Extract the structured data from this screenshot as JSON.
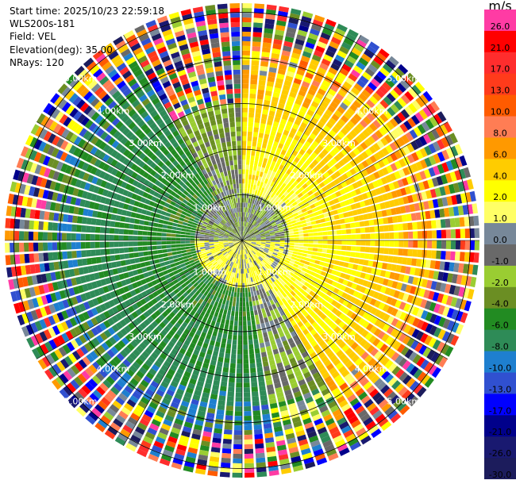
{
  "header": {
    "start_time": "Start time: 2025/10/23 22:59:18",
    "instrument": "WLS200s-181",
    "field": "Field: VEL",
    "elevation": "Elevation(deg): 35.00",
    "nrays": "NRays: 120"
  },
  "colorbar": {
    "unit": "m/s",
    "levels": [
      {
        "label": "26.0",
        "color": "#ff3ba4"
      },
      {
        "label": "21.0",
        "color": "#ff0000"
      },
      {
        "label": "17.0",
        "color": "#ff2d2d"
      },
      {
        "label": "13.0",
        "color": "#ff3b1b"
      },
      {
        "label": "10.0",
        "color": "#ff5b00"
      },
      {
        "label": "8.0",
        "color": "#ff7d54"
      },
      {
        "label": "6.0",
        "color": "#ff9900"
      },
      {
        "label": "4.0",
        "color": "#ffcc00"
      },
      {
        "label": "2.0",
        "color": "#ffff00"
      },
      {
        "label": "1.0",
        "color": "#ffff66"
      },
      {
        "label": "0.0",
        "color": "#778899"
      },
      {
        "label": "-1.0",
        "color": "#696969"
      },
      {
        "label": "-2.0",
        "color": "#9acd32"
      },
      {
        "label": "-4.0",
        "color": "#6b8e23"
      },
      {
        "label": "-6.0",
        "color": "#228b22"
      },
      {
        "label": "-8.0",
        "color": "#2e8b57"
      },
      {
        "label": "-10.0",
        "color": "#1e7fcf"
      },
      {
        "label": "-13.0",
        "color": "#3050d0"
      },
      {
        "label": "-17.0",
        "color": "#0000ff"
      },
      {
        "label": "-21.0",
        "color": "#00008b"
      },
      {
        "label": "-26.0",
        "color": "#191970"
      },
      {
        "label": "-30.0",
        "color": "#1c1c5c"
      }
    ]
  },
  "range_rings": [
    {
      "label": "1.00km",
      "range_km": 1
    },
    {
      "label": "2.00km",
      "range_km": 2
    },
    {
      "label": "3.00km",
      "range_km": 3
    },
    {
      "label": "4.00km",
      "range_km": 4
    },
    {
      "label": "5.00km",
      "range_km": 5
    }
  ],
  "chart_data": {
    "type": "heatmap",
    "field": "VEL",
    "units": "m/s",
    "n_rays": 120,
    "elevation_deg": 35.0,
    "max_range_km": 5.2,
    "color_scale_min": -30.0,
    "color_scale_max": 26.0,
    "approx_sectors": [
      {
        "azimuth_from_deg": 0,
        "azimuth_to_deg": 150,
        "range_from_km": 1.0,
        "range_to_km": 4.3,
        "velocity_ms": 4.0
      },
      {
        "azimuth_from_deg": 170,
        "azimuth_to_deg": 330,
        "range_from_km": 1.0,
        "range_to_km": 4.3,
        "velocity_ms": -6.0
      },
      {
        "azimuth_from_deg": 330,
        "azimuth_to_deg": 360,
        "range_from_km": 1.0,
        "range_to_km": 3.0,
        "velocity_ms": -2.0
      },
      {
        "azimuth_from_deg": 150,
        "azimuth_to_deg": 170,
        "range_from_km": 1.0,
        "range_to_km": 4.3,
        "velocity_ms": -1.0
      },
      {
        "azimuth_from_deg": 0,
        "azimuth_to_deg": 360,
        "range_from_km": 4.3,
        "range_to_km": 5.2,
        "velocity_ms": null
      }
    ]
  }
}
